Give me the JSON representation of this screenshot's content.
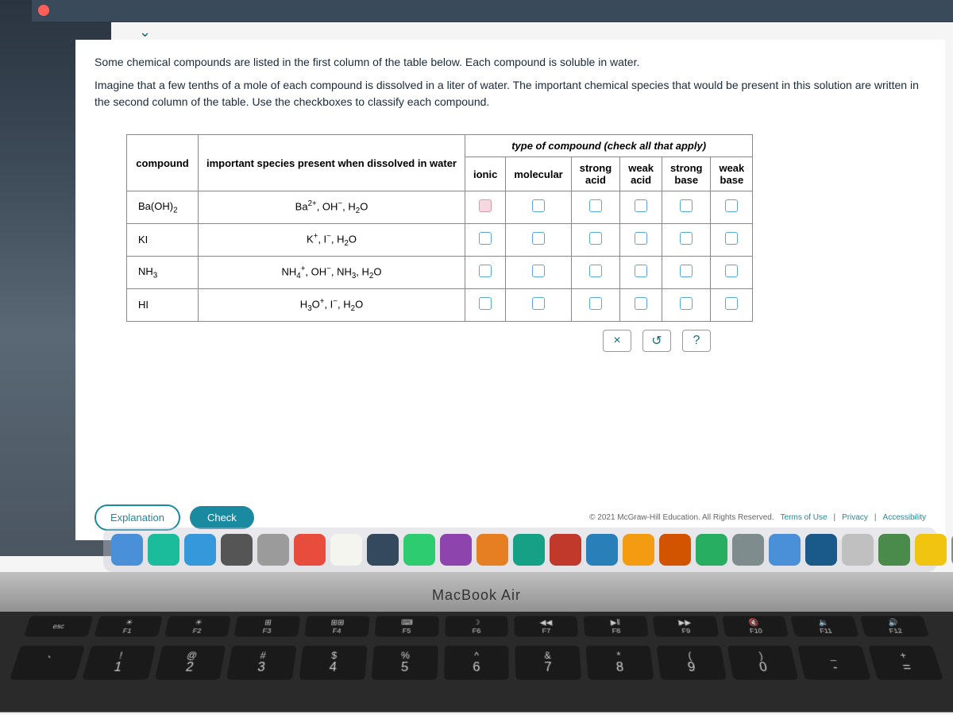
{
  "intro": {
    "p1": "Some chemical compounds are listed in the first column of the table below. Each compound is soluble in water.",
    "p2": "Imagine that a few tenths of a mole of each compound is dissolved in a liter of water. The important chemical species that would be present in this solution are written in the second column of the table. Use the checkboxes to classify each compound."
  },
  "table": {
    "headers": {
      "compound": "compound",
      "species": "important species present when dissolved in water",
      "type_header": "type of compound (check all that apply)",
      "cols": {
        "ionic": "ionic",
        "molecular": "molecular",
        "strong_acid": "strong acid",
        "weak_acid": "weak acid",
        "strong_base": "strong base",
        "weak_base": "weak base"
      }
    },
    "rows": [
      {
        "compound_html": "Ba(OH)<sub>2</sub>",
        "species_html": "Ba<sup>2+</sup>, OH<sup>−</sup>, H<sub>2</sub>O"
      },
      {
        "compound_html": "KI",
        "species_html": "K<sup>+</sup>, I<sup>−</sup>, H<sub>2</sub>O"
      },
      {
        "compound_html": "NH<sub>3</sub>",
        "species_html": "NH<sub>4</sub><sup>+</sup>, OH<sup>−</sup>, NH<sub>3</sub>, H<sub>2</sub>O"
      },
      {
        "compound_html": "HI",
        "species_html": "H<sub>3</sub>O<sup>+</sup>, I<sup>−</sup>, H<sub>2</sub>O"
      }
    ]
  },
  "actions": {
    "clear": "×",
    "reset": "↺",
    "help": "?"
  },
  "buttons": {
    "explanation": "Explanation",
    "check": "Check"
  },
  "footer": {
    "copyright": "© 2021 McGraw-Hill Education. All Rights Reserved.",
    "terms": "Terms of Use",
    "privacy": "Privacy",
    "accessibility": "Accessibility"
  },
  "macbook": "MacBook Air",
  "keyboard": {
    "fn_row": [
      "esc",
      "F1",
      "F2",
      "F3",
      "F4",
      "F5",
      "F6",
      "F7",
      "F8",
      "F9",
      "F10",
      "F11",
      "F12"
    ],
    "fn_icons": [
      "",
      "☀",
      "☀",
      "⊞",
      "⊞⊞",
      "⌨",
      "☽",
      "◀◀",
      "▶‖",
      "▶▶",
      "🔇",
      "🔉",
      "🔊"
    ],
    "num_row_top": [
      "",
      "!",
      "@",
      "#",
      "$",
      "%",
      "^",
      "&",
      "*",
      "(",
      ")",
      "_",
      "+"
    ],
    "num_row_main": [
      "`",
      "1",
      "2",
      "3",
      "4",
      "5",
      "6",
      "7",
      "8",
      "9",
      "0",
      "-",
      "="
    ]
  },
  "dock_colors": [
    "#4a90d9",
    "#1abc9c",
    "#3498db",
    "#555",
    "#9b9b9b",
    "#e74c3c",
    "#f5f5f0",
    "#34495e",
    "#2ecc71",
    "#8e44ad",
    "#e67e22",
    "#16a085",
    "#c0392b",
    "#2980b9",
    "#f39c12",
    "#d35400",
    "#27ae60",
    "#7f8c8d",
    "#4a90d9",
    "#1a5a8a",
    "#c0c0c0",
    "#4a8a4a",
    "#f1c40f",
    "#888"
  ]
}
